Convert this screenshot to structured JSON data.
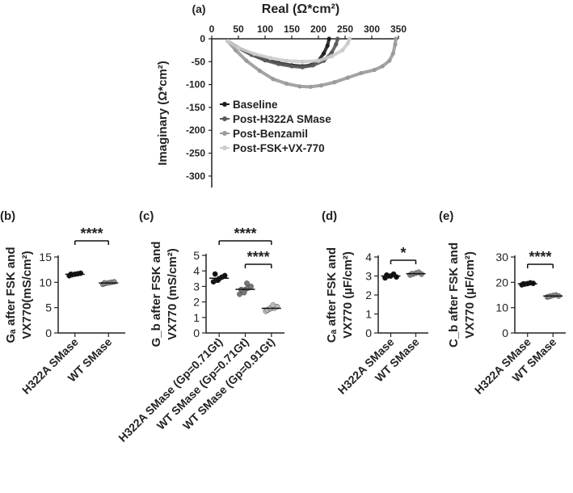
{
  "panel_labels": [
    "(a)",
    "(b)",
    "(c)",
    "(d)",
    "(e)"
  ],
  "chart_data": [
    {
      "panel": "(a)",
      "type": "scatter",
      "xlabel": "Real (Ω*cm²)",
      "ylabel": "Imaginary (Ω*cm²)",
      "xlim": [
        0,
        350
      ],
      "ylim": [
        -325,
        0
      ],
      "xticks": [
        "0",
        "50",
        "100",
        "150",
        "200",
        "250",
        "300",
        "350"
      ],
      "yticks": [
        "0",
        "-50",
        "-100",
        "-150",
        "-200",
        "-250",
        "-300"
      ],
      "legend_position": "right",
      "series": [
        {
          "name": "Baseline",
          "color": "#1e1e1e",
          "points": [
            [
              30,
              -5
            ],
            [
              50,
              -20
            ],
            [
              75,
              -35
            ],
            [
              100,
              -45
            ],
            [
              125,
              -53
            ],
            [
              150,
              -58
            ],
            [
              170,
              -60
            ],
            [
              185,
              -58
            ],
            [
              200,
              -48
            ],
            [
              210,
              -32
            ],
            [
              217,
              -15
            ],
            [
              220,
              0
            ]
          ]
        },
        {
          "name": "Post-H322A SMase",
          "color": "#5a5a5a",
          "points": [
            [
              30,
              -5
            ],
            [
              50,
              -20
            ],
            [
              75,
              -35
            ],
            [
              100,
              -47
            ],
            [
              125,
              -55
            ],
            [
              150,
              -60
            ],
            [
              170,
              -62
            ],
            [
              190,
              -58
            ],
            [
              210,
              -48
            ],
            [
              225,
              -30
            ],
            [
              233,
              -12
            ],
            [
              236,
              0
            ]
          ]
        },
        {
          "name": "Post-Benzamil",
          "color": "#9a9a9a",
          "points": [
            [
              30,
              -5
            ],
            [
              45,
              -25
            ],
            [
              65,
              -48
            ],
            [
              90,
              -70
            ],
            [
              115,
              -88
            ],
            [
              140,
              -98
            ],
            [
              165,
              -104
            ],
            [
              185,
              -105
            ],
            [
              205,
              -102
            ],
            [
              230,
              -95
            ],
            [
              255,
              -85
            ],
            [
              280,
              -75
            ],
            [
              305,
              -68
            ],
            [
              320,
              -60
            ],
            [
              333,
              -48
            ],
            [
              340,
              -32
            ],
            [
              344,
              -12
            ],
            [
              345,
              0
            ]
          ]
        },
        {
          "name": "Post-FSK+VX-770",
          "color": "#cccccc",
          "points": [
            [
              30,
              -5
            ],
            [
              50,
              -20
            ],
            [
              80,
              -33
            ],
            [
              110,
              -42
            ],
            [
              140,
              -48
            ],
            [
              170,
              -50
            ],
            [
              200,
              -48
            ],
            [
              225,
              -38
            ],
            [
              245,
              -25
            ],
            [
              255,
              -10
            ],
            [
              258,
              0
            ]
          ]
        }
      ]
    },
    {
      "panel": "(b)",
      "type": "scatter",
      "ylabel_lines": [
        "Gₐ after FSK and",
        "VX770(mS/cm²)"
      ],
      "ylim": [
        0,
        15
      ],
      "yticks": [
        "0",
        "5",
        "10",
        "15"
      ],
      "categories": [
        "H322A SMase",
        "WT SMase"
      ],
      "series": [
        {
          "name": "H322A SMase",
          "values": [
            11.3,
            11.5,
            11.6,
            11.7,
            11.8,
            11.6
          ],
          "color": "#111111"
        },
        {
          "name": "WT SMase",
          "values": [
            9.6,
            9.8,
            9.9,
            10.0,
            10.1,
            9.9
          ],
          "color": "#888888"
        }
      ],
      "significance": [
        {
          "from": 0,
          "to": 1,
          "label": "****"
        }
      ]
    },
    {
      "panel": "(c)",
      "type": "scatter",
      "ylabel_lines": [
        "G_b after FSK and",
        "VX770 (mS/cm²)"
      ],
      "ylim": [
        0,
        5
      ],
      "yticks": [
        "0",
        "1",
        "2",
        "3",
        "4",
        "5"
      ],
      "categories": [
        "H322A SMase (Gp=0.71Gt)",
        "WT SMase (Gp=0.71Gt)",
        "WT SMase (Gp=0.91Gt)"
      ],
      "series": [
        {
          "name": "H322A SMase (Gp=0.71Gt)",
          "values": [
            3.3,
            3.4,
            3.5,
            3.6,
            3.7,
            3.8,
            3.4
          ],
          "color": "#111111"
        },
        {
          "name": "WT SMase (Gp=0.71Gt)",
          "values": [
            2.5,
            2.7,
            2.8,
            2.9,
            3.0,
            2.8,
            2.6,
            3.2
          ],
          "color": "#777777"
        },
        {
          "name": "WT SMase (Gp=0.91Gt)",
          "values": [
            1.4,
            1.5,
            1.6,
            1.6,
            1.7,
            1.5,
            1.6,
            1.8
          ],
          "color": "#bbbbbb"
        }
      ],
      "significance": [
        {
          "from": 0,
          "to": 2,
          "label": "****"
        },
        {
          "from": 1,
          "to": 2,
          "label": "****"
        }
      ]
    },
    {
      "panel": "(d)",
      "type": "scatter",
      "ylabel_lines": [
        "Cₐ after FSK and",
        "VX770 (µF/cm²)"
      ],
      "ylim": [
        0,
        4
      ],
      "yticks": [
        "0",
        "1",
        "2",
        "3",
        "4"
      ],
      "categories": [
        "H322A SMase",
        "WT SMase"
      ],
      "series": [
        {
          "name": "H322A SMase",
          "values": [
            2.9,
            3.0,
            3.0,
            3.1,
            2.95,
            3.05
          ],
          "color": "#111111"
        },
        {
          "name": "WT SMase",
          "values": [
            3.05,
            3.1,
            3.15,
            3.2,
            3.1,
            3.12
          ],
          "color": "#888888"
        }
      ],
      "significance": [
        {
          "from": 0,
          "to": 1,
          "label": "*"
        }
      ]
    },
    {
      "panel": "(e)",
      "type": "scatter",
      "ylabel_lines": [
        "C_b after FSK and",
        "VX770 (µF/cm²)"
      ],
      "ylim": [
        0,
        30
      ],
      "yticks": [
        "0",
        "10",
        "20",
        "30"
      ],
      "categories": [
        "H322A SMase",
        "WT SMase"
      ],
      "series": [
        {
          "name": "H322A SMase",
          "values": [
            19.0,
            19.3,
            19.5,
            19.8,
            19.6,
            19.4
          ],
          "color": "#111111"
        },
        {
          "name": "WT SMase",
          "values": [
            14.2,
            14.5,
            14.8,
            15.0,
            14.6,
            14.4
          ],
          "color": "#888888"
        }
      ],
      "significance": [
        {
          "from": 0,
          "to": 1,
          "label": "****"
        }
      ]
    }
  ]
}
